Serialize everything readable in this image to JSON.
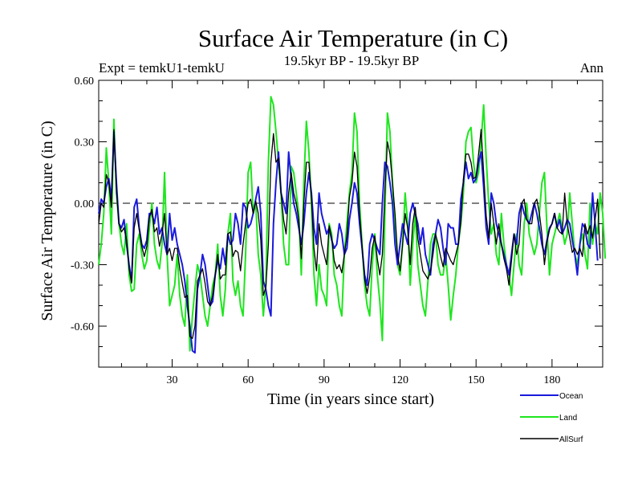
{
  "chart_data": {
    "type": "line",
    "title": "Surface Air Temperature (in C)",
    "subtitle_left": "Expt = temkU1-temkU",
    "subtitle_center": "19.5kyr BP - 19.5kyr BP",
    "subtitle_right": "Ann",
    "xlabel": "Time (in years since start)",
    "ylabel": "Surface Air Temperature (in C)",
    "xlim": [
      1,
      200
    ],
    "ylim": [
      -0.8,
      0.6
    ],
    "xticks": [
      30,
      60,
      90,
      120,
      150,
      180
    ],
    "xtick_labels": [
      "30",
      "60",
      "90",
      "120",
      "150",
      "180"
    ],
    "yticks": [
      0.6,
      0.3,
      0.0,
      -0.3,
      -0.6
    ],
    "ytick_labels": [
      "0.60",
      "0.30",
      "0.00",
      "-0.30",
      "-0.60"
    ],
    "zero_line": 0.0,
    "series": [
      {
        "name": "Ocean",
        "color": "#1a1adc",
        "values": [
          -0.05,
          0.02,
          0.0,
          0.08,
          0.12,
          0.02,
          0.35,
          0.1,
          -0.1,
          -0.12,
          -0.08,
          -0.2,
          -0.3,
          -0.38,
          -0.02,
          0.02,
          -0.12,
          -0.2,
          -0.22,
          -0.18,
          -0.05,
          -0.05,
          -0.1,
          -0.02,
          -0.15,
          -0.12,
          -0.2,
          -0.25,
          -0.05,
          -0.18,
          -0.12,
          -0.2,
          -0.25,
          -0.3,
          -0.38,
          -0.5,
          -0.6,
          -0.72,
          -0.73,
          -0.42,
          -0.35,
          -0.25,
          -0.3,
          -0.4,
          -0.5,
          -0.48,
          -0.35,
          -0.28,
          -0.32,
          -0.22,
          -0.3,
          -0.15,
          -0.2,
          -0.18,
          -0.05,
          -0.1,
          -0.2,
          0.0,
          -0.02,
          -0.12,
          -0.1,
          -0.05,
          0.02,
          0.08,
          -0.05,
          -0.38,
          -0.42,
          -0.5,
          -0.55,
          -0.1,
          0.1,
          0.25,
          0.05,
          0.0,
          -0.05,
          0.25,
          0.12,
          0.0,
          -0.05,
          -0.12,
          -0.2,
          -0.1,
          0.05,
          0.15,
          0.05,
          -0.12,
          -0.2,
          0.05,
          -0.05,
          -0.1,
          -0.15,
          -0.12,
          -0.18,
          -0.22,
          -0.2,
          -0.1,
          -0.15,
          -0.25,
          -0.22,
          -0.08,
          0.0,
          0.1,
          0.05,
          -0.1,
          -0.22,
          -0.35,
          -0.4,
          -0.2,
          -0.15,
          -0.18,
          -0.22,
          -0.25,
          0.0,
          0.2,
          0.18,
          0.1,
          0.0,
          -0.2,
          -0.3,
          -0.2,
          -0.1,
          -0.15,
          -0.2,
          -0.05,
          0.0,
          -0.05,
          -0.1,
          -0.2,
          -0.12,
          -0.25,
          -0.3,
          -0.35,
          -0.2,
          -0.15,
          -0.08,
          -0.12,
          -0.22,
          -0.3,
          -0.1,
          -0.12,
          -0.12,
          -0.2,
          -0.2,
          0.02,
          0.1,
          0.2,
          0.12,
          0.15,
          0.1,
          0.12,
          0.2,
          0.25,
          0.08,
          -0.12,
          -0.2,
          0.05,
          0.0,
          -0.1,
          -0.15,
          -0.2,
          -0.25,
          -0.3,
          -0.35,
          -0.25,
          -0.15,
          -0.2,
          -0.05,
          0.0,
          -0.05,
          -0.08,
          -0.1,
          -0.05,
          0.0,
          -0.05,
          -0.12,
          -0.2,
          -0.25,
          -0.18,
          -0.12,
          -0.1,
          -0.05,
          -0.12,
          -0.08,
          -0.15,
          -0.12,
          -0.08,
          -0.1,
          -0.18,
          -0.25,
          -0.35,
          -0.2,
          -0.1,
          -0.12,
          -0.2,
          -0.22,
          0.05,
          -0.1,
          -0.28
        ]
      },
      {
        "name": "Land",
        "color": "#1ee61e",
        "values": [
          -0.3,
          -0.2,
          -0.05,
          0.27,
          0.1,
          -0.15,
          0.41,
          0.05,
          -0.1,
          -0.2,
          -0.25,
          -0.1,
          -0.35,
          -0.43,
          -0.42,
          -0.2,
          -0.15,
          -0.25,
          -0.32,
          -0.28,
          -0.12,
          0.0,
          -0.2,
          -0.28,
          -0.32,
          -0.2,
          0.15,
          -0.25,
          -0.5,
          -0.45,
          -0.4,
          -0.25,
          -0.45,
          -0.55,
          -0.6,
          -0.35,
          -0.72,
          -0.55,
          -0.42,
          -0.3,
          -0.35,
          -0.45,
          -0.55,
          -0.6,
          -0.5,
          -0.4,
          -0.35,
          -0.2,
          -0.45,
          -0.55,
          -0.42,
          -0.15,
          -0.05,
          -0.38,
          -0.45,
          -0.38,
          -0.5,
          -0.55,
          -0.25,
          0.15,
          0.2,
          -0.05,
          0.0,
          -0.25,
          -0.35,
          -0.55,
          -0.4,
          0.2,
          0.52,
          0.48,
          0.35,
          0.2,
          0.05,
          -0.2,
          -0.3,
          -0.3,
          0.18,
          0.15,
          0.05,
          -0.05,
          -0.35,
          0.1,
          0.4,
          0.25,
          0.0,
          -0.35,
          -0.5,
          -0.3,
          -0.42,
          -0.45,
          -0.5,
          -0.1,
          -0.15,
          -0.35,
          -0.4,
          -0.5,
          -0.55,
          -0.25,
          -0.1,
          0.05,
          0.15,
          0.44,
          0.35,
          0.0,
          -0.2,
          -0.4,
          -0.5,
          -0.55,
          -0.3,
          -0.15,
          -0.35,
          -0.48,
          -0.67,
          -0.05,
          0.44,
          0.35,
          0.1,
          -0.1,
          -0.3,
          -0.35,
          -0.2,
          0.05,
          -0.1,
          -0.4,
          -0.2,
          -0.05,
          -0.3,
          -0.4,
          -0.5,
          -0.55,
          -0.38,
          -0.2,
          -0.15,
          -0.15,
          -0.3,
          -0.35,
          -0.35,
          -0.25,
          -0.4,
          -0.57,
          -0.45,
          -0.35,
          -0.2,
          -0.1,
          0.05,
          0.3,
          0.35,
          0.37,
          0.2,
          0.1,
          0.15,
          0.3,
          0.48,
          0.22,
          0.0,
          -0.15,
          -0.1,
          -0.25,
          -0.3,
          -0.05,
          -0.2,
          -0.3,
          -0.35,
          -0.45,
          -0.3,
          -0.15,
          -0.3,
          -0.35,
          -0.1,
          0.0,
          -0.15,
          -0.2,
          -0.25,
          -0.2,
          -0.05,
          0.1,
          0.15,
          -0.12,
          -0.35,
          -0.2,
          -0.15,
          -0.1,
          -0.05,
          -0.12,
          -0.2,
          -0.15,
          0.05,
          -0.1,
          -0.25,
          -0.3,
          -0.2,
          -0.15,
          -0.25,
          -0.32,
          0.0,
          -0.2,
          -0.1,
          -0.15,
          0.05,
          -0.05,
          -0.27
        ]
      },
      {
        "name": "AllSurf",
        "color": "#000000",
        "values": [
          -0.1,
          0.0,
          -0.02,
          0.14,
          0.1,
          -0.02,
          0.36,
          0.06,
          -0.1,
          -0.14,
          -0.12,
          -0.18,
          -0.32,
          -0.39,
          -0.12,
          -0.05,
          -0.13,
          -0.21,
          -0.26,
          -0.21,
          -0.07,
          -0.03,
          -0.14,
          -0.12,
          -0.21,
          -0.15,
          -0.05,
          -0.25,
          -0.22,
          -0.28,
          -0.22,
          -0.22,
          -0.32,
          -0.39,
          -0.46,
          -0.45,
          -0.65,
          -0.66,
          -0.6,
          -0.38,
          -0.35,
          -0.32,
          -0.39,
          -0.48,
          -0.5,
          -0.45,
          -0.35,
          -0.25,
          -0.37,
          -0.35,
          -0.35,
          -0.15,
          -0.14,
          -0.26,
          -0.23,
          -0.24,
          -0.33,
          -0.2,
          -0.1,
          0.0,
          0.02,
          -0.05,
          0.01,
          -0.05,
          -0.18,
          -0.45,
          -0.41,
          -0.2,
          0.2,
          0.34,
          0.2,
          0.22,
          0.05,
          -0.08,
          -0.15,
          0.05,
          0.15,
          0.05,
          0.0,
          -0.08,
          -0.27,
          0.0,
          0.2,
          0.2,
          0.02,
          -0.22,
          -0.33,
          -0.1,
          -0.2,
          -0.25,
          -0.3,
          -0.11,
          -0.17,
          -0.28,
          -0.32,
          -0.3,
          -0.34,
          -0.25,
          -0.16,
          0.03,
          0.1,
          0.25,
          0.18,
          -0.05,
          -0.21,
          -0.37,
          -0.44,
          -0.36,
          -0.22,
          -0.16,
          -0.27,
          -0.35,
          -0.25,
          0.05,
          0.3,
          0.24,
          0.1,
          -0.05,
          -0.25,
          -0.33,
          -0.2,
          -0.05,
          -0.12,
          -0.3,
          -0.1,
          -0.02,
          -0.17,
          -0.25,
          -0.33,
          -0.35,
          -0.37,
          -0.33,
          -0.25,
          -0.15,
          -0.2,
          -0.26,
          -0.31,
          -0.22,
          -0.25,
          -0.28,
          -0.3,
          -0.25,
          -0.2,
          -0.09,
          0.12,
          0.24,
          0.24,
          0.2,
          0.12,
          0.13,
          0.24,
          0.36,
          0.15,
          -0.06,
          -0.17,
          0.0,
          -0.1,
          -0.2,
          -0.1,
          -0.2,
          -0.27,
          -0.32,
          -0.4,
          -0.28,
          -0.15,
          -0.25,
          -0.2,
          0.0,
          0.02,
          -0.08,
          -0.1,
          -0.1,
          0.0,
          0.02,
          -0.05,
          -0.15,
          -0.3,
          -0.19,
          -0.13,
          -0.1,
          -0.05,
          -0.12,
          -0.14,
          -0.15,
          0.05,
          -0.1,
          -0.17,
          -0.24,
          -0.22,
          -0.25,
          -0.22,
          -0.26,
          -0.1,
          -0.15,
          -0.11,
          -0.17,
          -0.08,
          0.02,
          -0.27
        ]
      }
    ]
  },
  "legend": {
    "ocean_label": "Ocean",
    "land_label": "Land",
    "allsurf_label": "AllSurf"
  }
}
